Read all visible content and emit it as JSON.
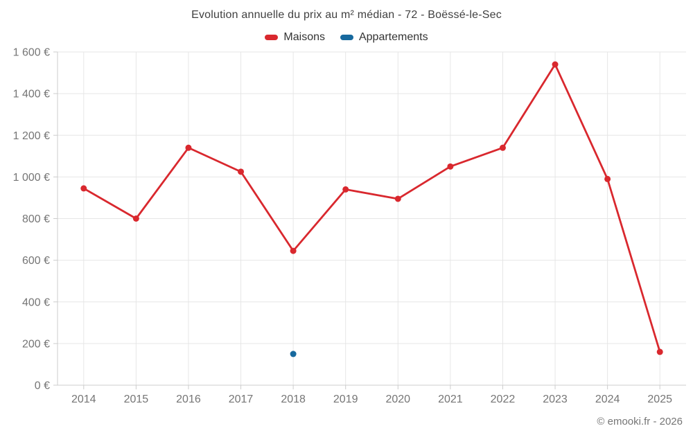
{
  "chart_data": {
    "type": "line",
    "title": "Evolution annuelle du prix au m² médian - 72 - Boëssé-le-Sec",
    "categories": [
      "2014",
      "2015",
      "2016",
      "2017",
      "2018",
      "2019",
      "2020",
      "2021",
      "2022",
      "2023",
      "2024",
      "2025"
    ],
    "series": [
      {
        "name": "Maisons",
        "color": "#d9282e",
        "values": [
          945,
          800,
          1140,
          1025,
          645,
          940,
          895,
          1050,
          1140,
          1540,
          990,
          160
        ]
      },
      {
        "name": "Appartements",
        "color": "#17699e",
        "values": [
          null,
          null,
          null,
          null,
          150,
          null,
          null,
          null,
          null,
          null,
          null,
          null
        ]
      }
    ],
    "ylim": [
      0,
      1600
    ],
    "ytick_step": 200,
    "ytick_labels": [
      "0 €",
      "200 €",
      "400 €",
      "600 €",
      "800 €",
      "1 000 €",
      "1 200 €",
      "1 400 €",
      "1 600 €"
    ],
    "currency_suffix": "€",
    "grid": true,
    "legend_position": "top",
    "copyright": "© emooki.fr - 2026",
    "colors": {
      "gridline": "#e6e6e6",
      "axis": "#cccccc",
      "tick_label": "#757575",
      "title": "#404040",
      "legend_text": "#333333"
    }
  }
}
